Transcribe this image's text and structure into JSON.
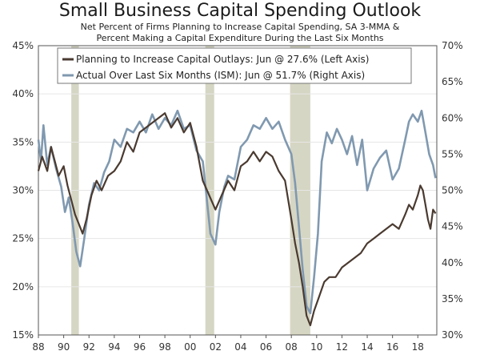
{
  "title": "Small Business Capital Spending Outlook",
  "subtitle_line1": "Net Percent of Firms Planning to Increase Capital Spending, SA 3-MMA &",
  "subtitle_line2": "Percent Making a Capital Expenditure During the Last Six Months",
  "colors": {
    "planning": "#4a3a30",
    "actual": "#8099b0",
    "recession": "#d6d6c4",
    "axis": "#555555"
  },
  "chart_data": {
    "type": "line",
    "title": "Small Business Capital Spending Outlook",
    "x_range": [
      1988,
      2019.5
    ],
    "x_ticks": [
      1988,
      1990,
      1992,
      1994,
      1996,
      1998,
      2000,
      2002,
      2004,
      2006,
      2008,
      2010,
      2012,
      2014,
      2016,
      2018
    ],
    "x_tick_labels": [
      "88",
      "90",
      "92",
      "94",
      "96",
      "98",
      "00",
      "02",
      "04",
      "06",
      "08",
      "10",
      "12",
      "14",
      "16",
      "18"
    ],
    "left_axis": {
      "range": [
        15,
        45
      ],
      "ticks": [
        15,
        20,
        25,
        30,
        35,
        40,
        45
      ],
      "tick_labels": [
        "15%",
        "20%",
        "25%",
        "30%",
        "35%",
        "40%",
        "45%"
      ]
    },
    "right_axis": {
      "range": [
        30,
        70
      ],
      "ticks": [
        30,
        35,
        40,
        45,
        50,
        55,
        60,
        65,
        70
      ],
      "tick_labels": [
        "30%",
        "35%",
        "40%",
        "45%",
        "50%",
        "55%",
        "60%",
        "65%",
        "70%"
      ]
    },
    "recessions": [
      [
        1990.6,
        1991.2
      ],
      [
        2001.2,
        2001.9
      ],
      [
        2007.9,
        2009.5
      ]
    ],
    "series": [
      {
        "name": "Planning to Increase Capital Outlays: Jun @ 27.6% (Left Axis)",
        "axis": "left",
        "x": [
          1988.0,
          1988.3,
          1988.7,
          1989.0,
          1989.3,
          1989.6,
          1990.0,
          1990.3,
          1990.6,
          1990.9,
          1991.2,
          1991.5,
          1991.8,
          1992.2,
          1992.6,
          1993.0,
          1993.5,
          1994.0,
          1994.5,
          1995.0,
          1995.5,
          1996.0,
          1996.5,
          1997.0,
          1997.5,
          1998.0,
          1998.5,
          1999.0,
          1999.5,
          2000.0,
          2000.5,
          2001.0,
          2001.5,
          2002.0,
          2002.5,
          2003.0,
          2003.5,
          2004.0,
          2004.5,
          2005.0,
          2005.5,
          2006.0,
          2006.5,
          2007.0,
          2007.5,
          2008.0,
          2008.3,
          2008.6,
          2008.9,
          2009.2,
          2009.5,
          2009.8,
          2010.2,
          2010.6,
          2011.0,
          2011.5,
          2012.0,
          2012.5,
          2013.0,
          2013.5,
          2014.0,
          2014.5,
          2015.0,
          2015.5,
          2016.0,
          2016.5,
          2017.0,
          2017.3,
          2017.6,
          2018.0,
          2018.2,
          2018.4,
          2018.6,
          2018.8,
          2019.0,
          2019.2,
          2019.4
        ],
        "values": [
          32.0,
          33.5,
          32.0,
          34.5,
          33.0,
          31.5,
          32.5,
          30.5,
          29.0,
          27.5,
          26.5,
          25.5,
          27.0,
          29.5,
          31.0,
          30.0,
          31.5,
          32.0,
          33.0,
          35.0,
          34.0,
          36.0,
          36.5,
          37.0,
          37.5,
          38.0,
          36.5,
          37.5,
          36.0,
          37.0,
          34.5,
          31.0,
          29.5,
          28.0,
          29.5,
          31.0,
          30.0,
          32.5,
          33.0,
          34.0,
          33.0,
          34.0,
          33.5,
          32.0,
          31.0,
          27.0,
          24.5,
          22.5,
          20.0,
          17.0,
          16.0,
          17.5,
          19.0,
          20.5,
          21.0,
          21.0,
          22.0,
          22.5,
          23.0,
          23.5,
          24.5,
          25.0,
          25.5,
          26.0,
          26.5,
          26.0,
          27.5,
          28.5,
          28.0,
          29.5,
          30.5,
          30.0,
          28.5,
          27.0,
          26.0,
          28.0,
          27.6
        ]
      },
      {
        "name": "Actual Over Last Six Months (ISM): Jun @ 51.7% (Right Axis)",
        "axis": "right",
        "x": [
          1988.0,
          1988.2,
          1988.4,
          1988.7,
          1989.0,
          1989.4,
          1989.8,
          1990.1,
          1990.4,
          1990.7,
          1991.0,
          1991.3,
          1991.6,
          1992.0,
          1992.4,
          1992.8,
          1993.2,
          1993.6,
          1994.0,
          1994.5,
          1995.0,
          1995.5,
          1996.0,
          1996.5,
          1997.0,
          1997.5,
          1998.0,
          1998.5,
          1999.0,
          1999.5,
          2000.0,
          2000.5,
          2001.0,
          2001.3,
          2001.6,
          2002.0,
          2002.3,
          2002.7,
          2003.0,
          2003.5,
          2004.0,
          2004.5,
          2005.0,
          2005.5,
          2006.0,
          2006.5,
          2007.0,
          2007.5,
          2008.0,
          2008.3,
          2008.6,
          2008.9,
          2009.2,
          2009.5,
          2009.8,
          2010.1,
          2010.4,
          2010.8,
          2011.2,
          2011.6,
          2012.0,
          2012.4,
          2012.8,
          2013.2,
          2013.6,
          2014.0,
          2014.5,
          2015.0,
          2015.5,
          2016.0,
          2016.5,
          2017.0,
          2017.3,
          2017.6,
          2018.0,
          2018.3,
          2018.6,
          2018.9,
          2019.2,
          2019.4
        ],
        "values": [
          57.0,
          54.0,
          59.0,
          53.5,
          56.0,
          53.0,
          50.5,
          47.0,
          49.0,
          45.5,
          41.5,
          39.5,
          43.0,
          48.0,
          51.0,
          50.0,
          52.5,
          54.0,
          57.0,
          56.0,
          58.5,
          58.0,
          59.5,
          58.0,
          60.5,
          58.5,
          60.0,
          59.0,
          61.0,
          58.5,
          59.0,
          55.5,
          54.0,
          49.0,
          44.0,
          42.5,
          47.0,
          50.5,
          52.0,
          51.5,
          56.0,
          57.0,
          59.0,
          58.5,
          60.0,
          58.5,
          59.5,
          57.0,
          55.0,
          51.0,
          45.0,
          39.0,
          34.0,
          33.0,
          38.0,
          44.0,
          54.0,
          58.0,
          56.5,
          58.5,
          57.0,
          55.0,
          57.5,
          53.5,
          57.0,
          50.0,
          53.0,
          54.5,
          55.5,
          51.5,
          53.0,
          57.0,
          59.5,
          60.5,
          59.5,
          61.0,
          58.0,
          55.0,
          53.5,
          51.7
        ]
      }
    ]
  }
}
